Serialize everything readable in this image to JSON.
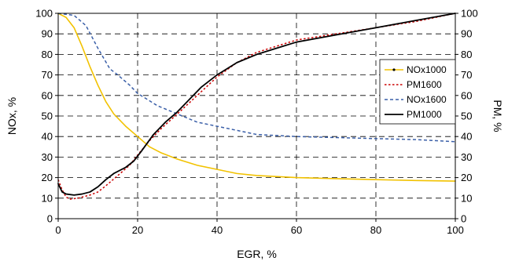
{
  "chart_data": {
    "type": "line",
    "xlabel": "EGR, %",
    "ylabel_left": "NOx, %",
    "ylabel_right": "PM, %",
    "xlim": [
      0,
      100
    ],
    "ylim": [
      0,
      100
    ],
    "x_ticks": [
      "0",
      "20",
      "40",
      "60",
      "80",
      "100"
    ],
    "y_ticks": [
      "0",
      "10",
      "20",
      "30",
      "40",
      "50",
      "60",
      "70",
      "80",
      "90",
      "100"
    ],
    "grid": "dashed",
    "legend_position": "right",
    "series": [
      {
        "name": "NOx1000",
        "color": "#f2c200",
        "style": "solid",
        "points": [
          [
            0,
            100
          ],
          [
            2,
            98
          ],
          [
            4,
            93
          ],
          [
            6,
            84
          ],
          [
            8,
            74
          ],
          [
            10,
            65
          ],
          [
            12,
            57
          ],
          [
            14,
            51
          ],
          [
            17,
            45
          ],
          [
            20,
            40
          ],
          [
            23,
            35
          ],
          [
            26,
            32
          ],
          [
            30,
            29
          ],
          [
            35,
            26
          ],
          [
            40,
            24
          ],
          [
            45,
            22
          ],
          [
            50,
            21
          ],
          [
            60,
            20
          ],
          [
            70,
            19.5
          ],
          [
            80,
            19
          ],
          [
            90,
            18.6
          ],
          [
            100,
            18.3
          ]
        ]
      },
      {
        "name": "PM1600",
        "color": "#cc0000",
        "style": "dotted",
        "points": [
          [
            0,
            19
          ],
          [
            1,
            14
          ],
          [
            2,
            10.5
          ],
          [
            3,
            9.5
          ],
          [
            5,
            10
          ],
          [
            8,
            11.5
          ],
          [
            10,
            13
          ],
          [
            12,
            16
          ],
          [
            15,
            21
          ],
          [
            18,
            26
          ],
          [
            20,
            31
          ],
          [
            23,
            38
          ],
          [
            26,
            44
          ],
          [
            30,
            51
          ],
          [
            35,
            60
          ],
          [
            40,
            69
          ],
          [
            45,
            76
          ],
          [
            50,
            81
          ],
          [
            55,
            84
          ],
          [
            60,
            87
          ],
          [
            70,
            90
          ],
          [
            80,
            93
          ],
          [
            90,
            96
          ],
          [
            100,
            100
          ]
        ]
      },
      {
        "name": "NOx1600",
        "color": "#3a5fa8",
        "style": "dashed",
        "points": [
          [
            0,
            100
          ],
          [
            4,
            99
          ],
          [
            7,
            94
          ],
          [
            10,
            83
          ],
          [
            13,
            73
          ],
          [
            15,
            70
          ],
          [
            18,
            65
          ],
          [
            20,
            61
          ],
          [
            25,
            55
          ],
          [
            30,
            51
          ],
          [
            35,
            47
          ],
          [
            40,
            45
          ],
          [
            45,
            43
          ],
          [
            50,
            41
          ],
          [
            60,
            40
          ],
          [
            70,
            39.5
          ],
          [
            80,
            39
          ],
          [
            90,
            38.5
          ],
          [
            100,
            37.5
          ]
        ]
      },
      {
        "name": "PM1000",
        "color": "#000000",
        "style": "solid",
        "points": [
          [
            0,
            17
          ],
          [
            1,
            13
          ],
          [
            2,
            12
          ],
          [
            4,
            11.5
          ],
          [
            6,
            12
          ],
          [
            8,
            13
          ],
          [
            10,
            15.5
          ],
          [
            12,
            19
          ],
          [
            14,
            22
          ],
          [
            17,
            25
          ],
          [
            19,
            28
          ],
          [
            21,
            33
          ],
          [
            24,
            41
          ],
          [
            27,
            47
          ],
          [
            30,
            52
          ],
          [
            33,
            58
          ],
          [
            36,
            64
          ],
          [
            40,
            70
          ],
          [
            45,
            76
          ],
          [
            50,
            80
          ],
          [
            55,
            83
          ],
          [
            60,
            86
          ],
          [
            70,
            89.5
          ],
          [
            80,
            93
          ],
          [
            90,
            96.5
          ],
          [
            100,
            100
          ]
        ]
      }
    ]
  }
}
